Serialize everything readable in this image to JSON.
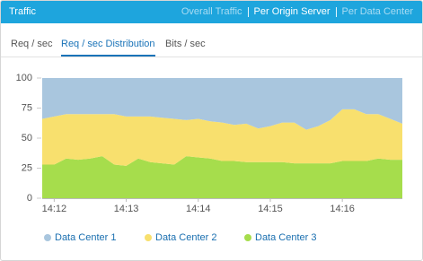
{
  "header": {
    "title": "Traffic",
    "links": [
      "Overall Traffic",
      "Per Origin Server",
      "Per Data Center"
    ]
  },
  "tabs": [
    "Req / sec",
    "Req / sec Distribution",
    "Bits / sec"
  ],
  "chart_data": {
    "type": "stacked_area",
    "categories": [
      null,
      "14:12",
      null,
      null,
      null,
      null,
      null,
      "14:13",
      null,
      null,
      null,
      null,
      null,
      "14:14",
      null,
      null,
      null,
      null,
      null,
      "14:15",
      null,
      null,
      null,
      null,
      null,
      "14:16",
      null,
      null,
      null,
      null,
      null
    ],
    "series": [
      {
        "name": "Data Center 1",
        "color": "#a9c6de",
        "values": [
          34,
          32,
          30,
          30,
          30,
          30,
          30,
          32,
          32,
          32,
          33,
          34,
          35,
          34,
          36,
          37,
          39,
          38,
          42,
          40,
          37,
          37,
          43,
          40,
          35,
          26,
          26,
          30,
          30,
          34,
          38
        ]
      },
      {
        "name": "Data Center 2",
        "color": "#f8e06e",
        "values": [
          38,
          40,
          37,
          38,
          37,
          35,
          42,
          41,
          35,
          38,
          38,
          38,
          30,
          32,
          31,
          32,
          30,
          32,
          28,
          30,
          33,
          34,
          28,
          31,
          36,
          43,
          43,
          39,
          37,
          34,
          30
        ]
      },
      {
        "name": "Data Center 3",
        "color": "#a6dd4c",
        "values": [
          28,
          28,
          33,
          32,
          33,
          35,
          28,
          27,
          33,
          30,
          29,
          28,
          35,
          34,
          33,
          31,
          31,
          30,
          30,
          30,
          30,
          29,
          29,
          29,
          29,
          31,
          31,
          31,
          33,
          32,
          32
        ]
      }
    ],
    "ylim": [
      0,
      100
    ],
    "yticks": [
      0,
      25,
      50,
      75,
      100
    ],
    "grid": false,
    "legend": "bottom"
  }
}
